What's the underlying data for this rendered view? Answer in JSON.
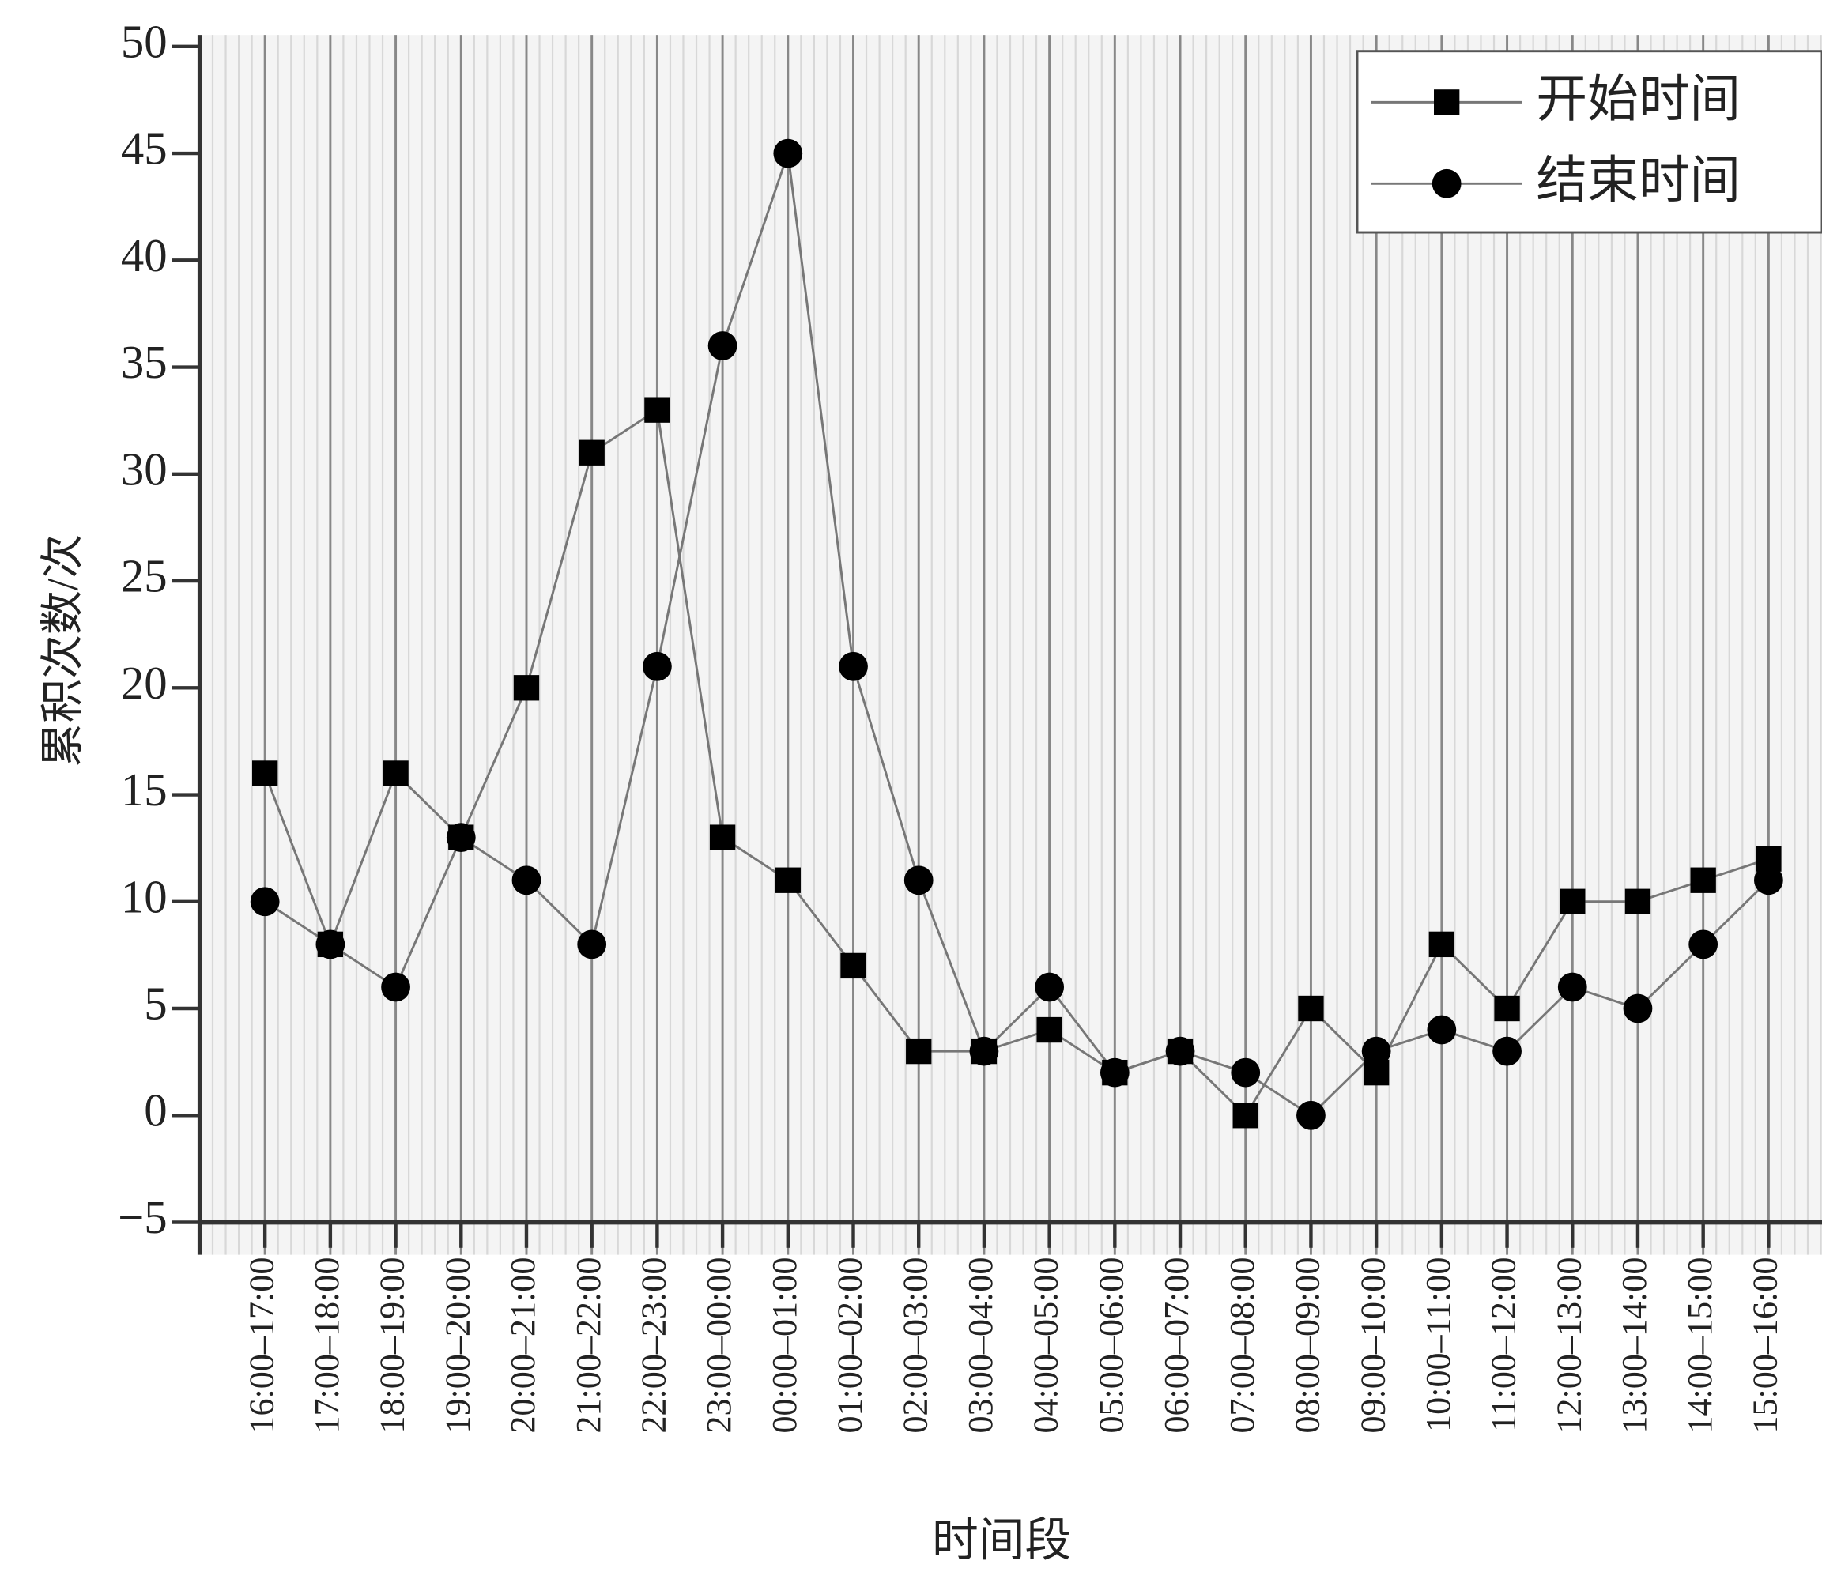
{
  "chart_data": {
    "type": "line",
    "x_label": "时间段",
    "y_label": "累积次数/次",
    "categories": [
      "16:00–17:00",
      "17:00–18:00",
      "18:00–19:00",
      "19:00–20:00",
      "20:00–21:00",
      "21:00–22:00",
      "22:00–23:00",
      "23:00–00:00",
      "00:00–01:00",
      "01:00–02:00",
      "02:00–03:00",
      "03:00–04:00",
      "04:00–05:00",
      "05:00–06:00",
      "06:00–07:00",
      "07:00–08:00",
      "08:00–09:00",
      "09:00–10:00",
      "10:00–11:00",
      "11:00–12:00",
      "12:00–13:00",
      "13:00–14:00",
      "14:00–15:00",
      "15:00–16:00"
    ],
    "series": [
      {
        "name": "开始时间",
        "color": "#000000",
        "marker": "square",
        "values": [
          16,
          8,
          16,
          13,
          20,
          31,
          33,
          13,
          11,
          7,
          3,
          3,
          4,
          2,
          3,
          0,
          5,
          2,
          8,
          5,
          10,
          10,
          11,
          12
        ]
      },
      {
        "name": "结束时间",
        "color": "#000000",
        "marker": "circle",
        "values": [
          10,
          8,
          6,
          13,
          11,
          8,
          21,
          36,
          45,
          21,
          11,
          3,
          6,
          2,
          3,
          2,
          0,
          3,
          4,
          3,
          6,
          5,
          8,
          11
        ]
      }
    ],
    "ylim": [
      -5,
      50
    ],
    "yticks": [
      {
        "value": -5,
        "label": "−5"
      },
      0,
      5,
      10,
      15,
      20,
      25,
      30,
      35,
      40,
      45,
      50
    ],
    "grid": true,
    "legend": "upper right"
  }
}
